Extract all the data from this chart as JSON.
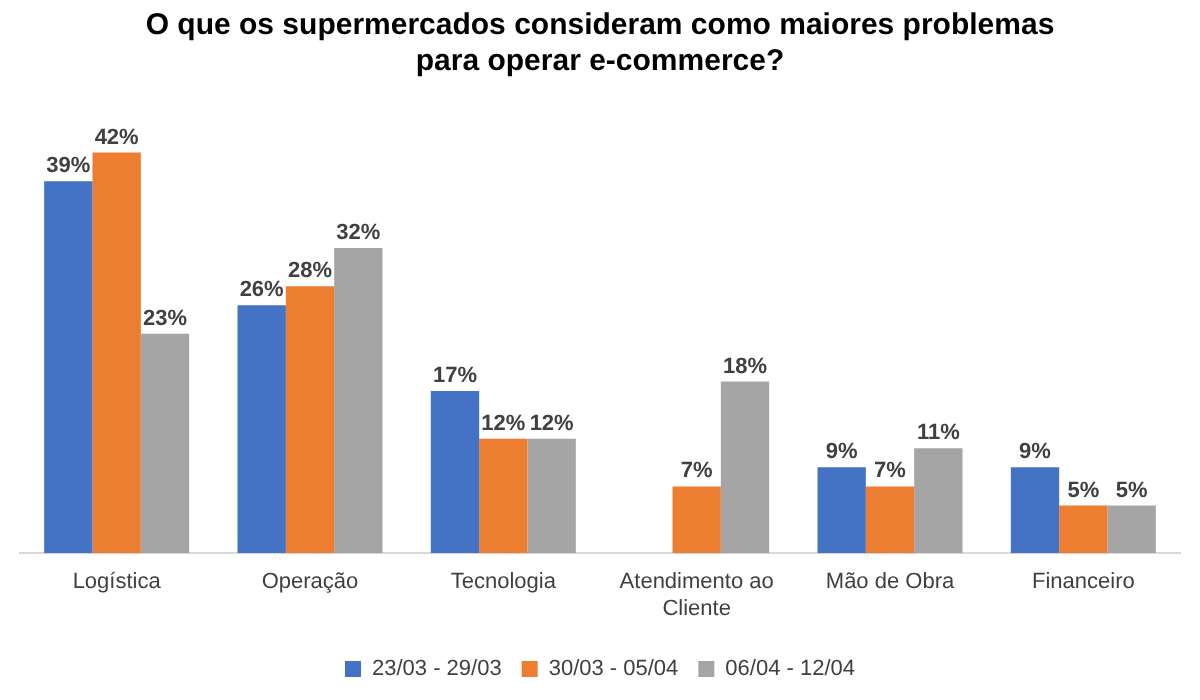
{
  "chart_data": {
    "type": "bar",
    "title": "O que os supermercados consideram como maiores problemas para operar e-commerce?",
    "categories": [
      "Logística",
      "Operação",
      "Tecnologia",
      "Atendimento ao Cliente",
      "Mão de Obra",
      "Financeiro"
    ],
    "series": [
      {
        "name": "23/03 - 29/03",
        "color": "#4472c4",
        "values": [
          39,
          26,
          17,
          null,
          9,
          9
        ],
        "value_labels": [
          "39%",
          "26%",
          "17%",
          null,
          "9%",
          "9%"
        ]
      },
      {
        "name": "30/03 - 05/04",
        "color": "#ed7d31",
        "values": [
          42,
          28,
          12,
          7,
          7,
          5
        ],
        "value_labels": [
          "42%",
          "28%",
          "12%",
          "7%",
          "7%",
          "5%"
        ]
      },
      {
        "name": "06/04 - 12/04",
        "color": "#a5a5a5",
        "values": [
          23,
          32,
          12,
          18,
          11,
          5
        ],
        "value_labels": [
          "23%",
          "32%",
          "12%",
          "18%",
          "11%",
          "5%"
        ]
      }
    ],
    "grid": false,
    "legend": "bottom"
  }
}
